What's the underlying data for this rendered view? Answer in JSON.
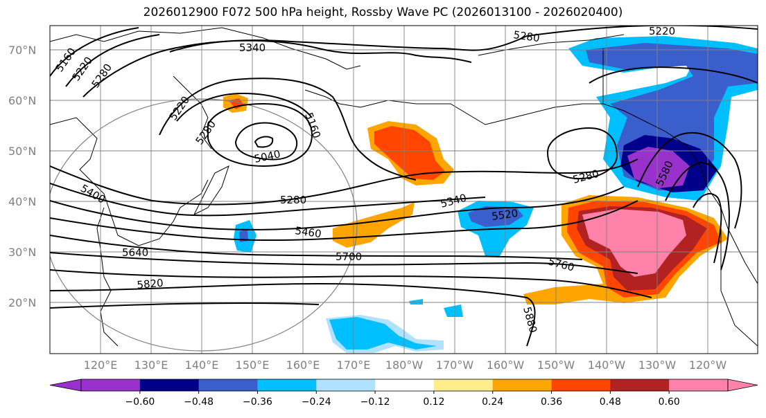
{
  "title": "2026012900 F072 500 hPa height, Rossby Wave PC (2026013100 - 2026020400)",
  "lat_labels": [
    "70°N",
    "60°N",
    "50°N",
    "40°N",
    "30°N",
    "20°N"
  ],
  "lon_labels": [
    "120°E",
    "130°E",
    "140°E",
    "150°E",
    "160°E",
    "170°E",
    "180°W",
    "170°W",
    "160°W",
    "150°W",
    "140°W",
    "130°W",
    "120°W"
  ],
  "contour_labels": [
    "5160",
    "5220",
    "5280",
    "5340",
    "5220",
    "5280",
    "5220",
    "5280",
    "5160",
    "5040",
    "5400",
    "5280",
    "5460",
    "5640",
    "5700",
    "5820",
    "5340",
    "5520",
    "5280",
    "5580",
    "5760",
    "5880"
  ],
  "colorbar": {
    "ticks": [
      "−0.60",
      "−0.48",
      "−0.36",
      "−0.24",
      "−0.12",
      "0.12",
      "0.24",
      "0.36",
      "0.48",
      "0.60"
    ],
    "colors": [
      "#9932cc",
      "#00008b",
      "#3a5fcd",
      "#00bfff",
      "#b0e2ff",
      "#ffffff",
      "#ffec8b",
      "#ffa500",
      "#ff4500",
      "#b22222",
      "#ff82ab"
    ]
  }
}
